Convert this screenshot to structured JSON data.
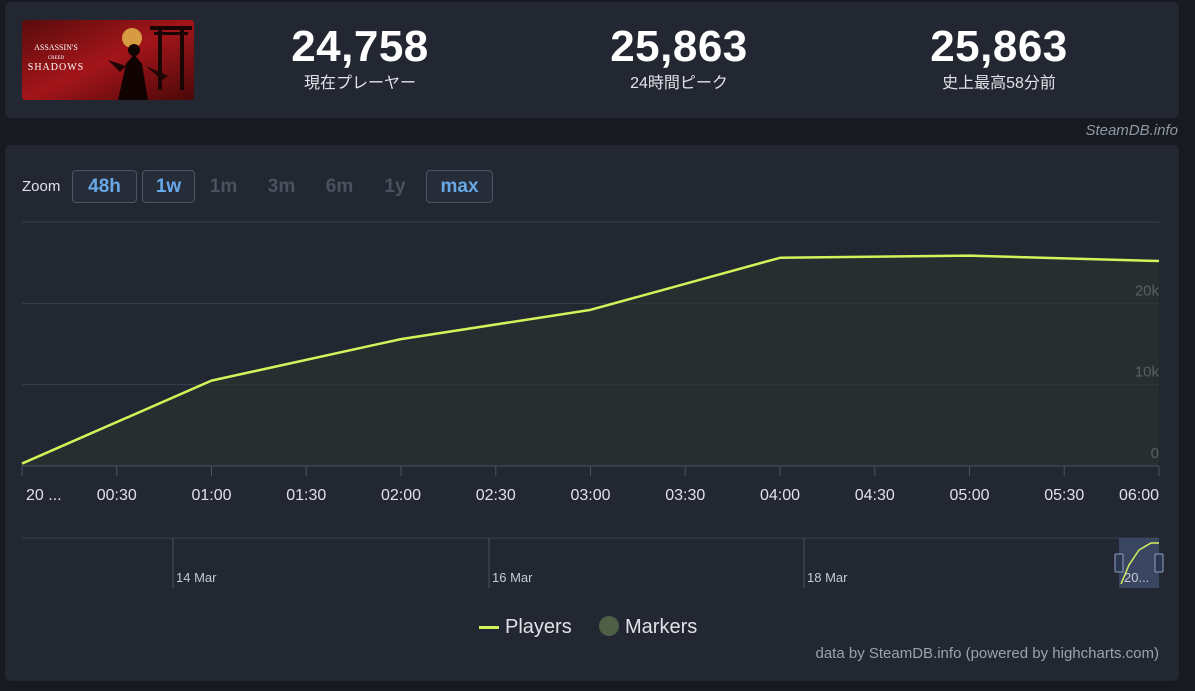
{
  "game": {
    "logo_line1": "ASSASSIN'S",
    "logo_line2": "CREED",
    "logo_line3": "SHADOWS"
  },
  "stats": [
    {
      "value": "24,758",
      "label": "現在プレーヤー"
    },
    {
      "value": "25,863",
      "label": "24時間ピーク"
    },
    {
      "value": "25,863",
      "label": "史上最高58分前"
    }
  ],
  "credit": "SteamDB.info",
  "zoom": {
    "label": "Zoom",
    "buttons": [
      {
        "label": "48h",
        "state": "active"
      },
      {
        "label": "1w",
        "state": "active"
      },
      {
        "label": "1m",
        "state": "disabled"
      },
      {
        "label": "3m",
        "state": "disabled"
      },
      {
        "label": "6m",
        "state": "disabled"
      },
      {
        "label": "1y",
        "state": "disabled"
      },
      {
        "label": "max",
        "state": "active"
      }
    ]
  },
  "chart_data": {
    "type": "area",
    "x_unit": "minutes",
    "x": [
      0,
      60,
      120,
      180,
      240,
      300,
      360
    ],
    "values": [
      300,
      10500,
      15600,
      19200,
      25600,
      25863,
      25200
    ],
    "ylim": [
      0,
      30000
    ],
    "y_ticks": [
      0,
      10000,
      20000
    ],
    "y_tick_labels": [
      "0",
      "10k",
      "20k"
    ],
    "xlim": [
      0,
      360
    ],
    "x_ticks": [
      0,
      30,
      60,
      90,
      120,
      150,
      180,
      210,
      240,
      270,
      300,
      330,
      360
    ],
    "x_tick_labels": [
      "20 ...",
      "00:30",
      "01:00",
      "01:30",
      "02:00",
      "02:30",
      "03:00",
      "03:30",
      "04:00",
      "04:30",
      "05:00",
      "05:30",
      "06:00"
    ],
    "grid": true,
    "line_color": "#d4f25a",
    "navigator": {
      "labels": [
        "14 Mar",
        "16 Mar",
        "18 Mar",
        "20..."
      ]
    },
    "legend": [
      "Players",
      "Markers"
    ],
    "legend_position": "bottom-center"
  },
  "footer": "data by SteamDB.info (powered by highcharts.com)"
}
